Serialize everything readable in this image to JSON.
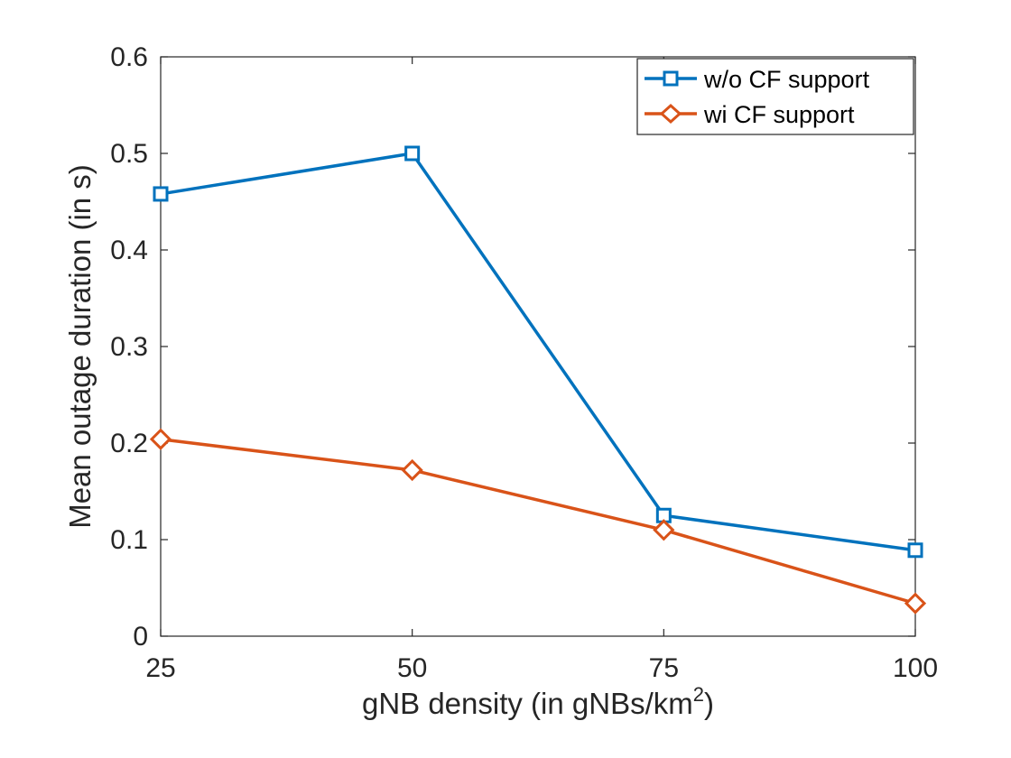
{
  "chart_data": {
    "type": "line",
    "x": [
      25,
      50,
      75,
      100
    ],
    "x_tick_labels": [
      "25",
      "50",
      "75",
      "100"
    ],
    "y_tick_labels": [
      "0",
      "0.1",
      "0.2",
      "0.3",
      "0.4",
      "0.5",
      "0.6"
    ],
    "xlim": [
      25,
      100
    ],
    "ylim": [
      0,
      0.6
    ],
    "xlabel": "gNB density (in gNBs/km",
    "xlabel_superscript": "2",
    "xlabel_suffix": ")",
    "ylabel": "Mean outage duration (in s)",
    "grid": false,
    "legend_position": "top-right",
    "series": [
      {
        "name": "w/o CF support",
        "values": [
          0.458,
          0.5,
          0.125,
          0.089
        ],
        "marker": "square",
        "color": "#0072BD"
      },
      {
        "name": "wi CF support",
        "values": [
          0.204,
          0.172,
          0.11,
          0.034
        ],
        "marker": "diamond",
        "color": "#D95319"
      }
    ]
  }
}
